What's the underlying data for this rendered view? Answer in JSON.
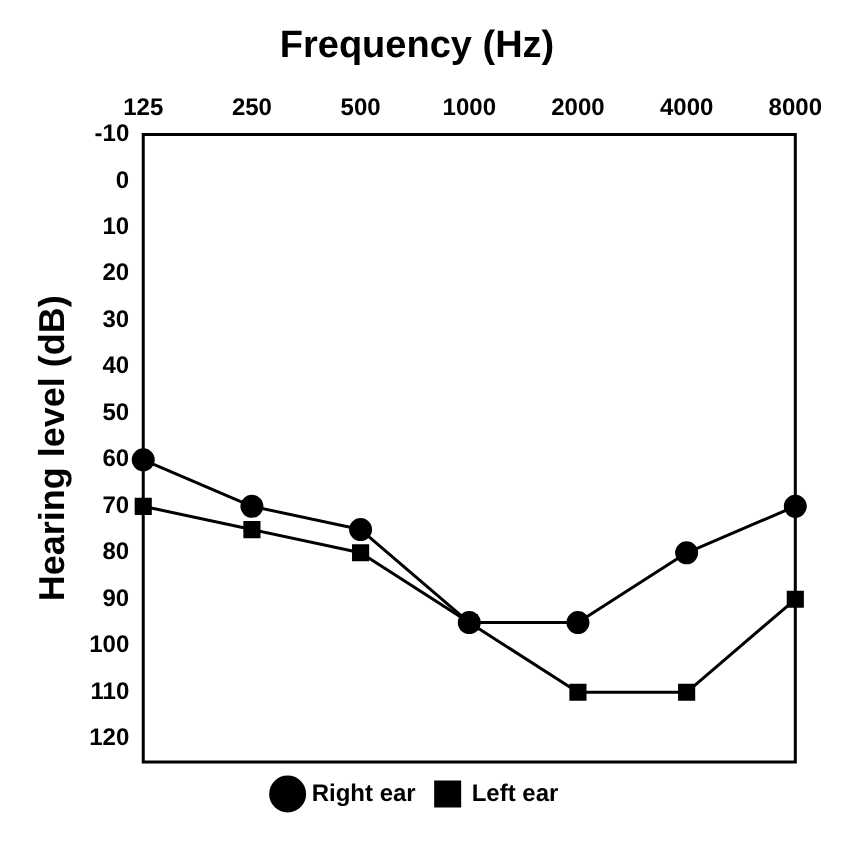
{
  "chart_data": {
    "type": "line",
    "title": "Frequency (Hz)",
    "ylabel": "Hearing level (dB)",
    "categories": [
      "125",
      "250",
      "500",
      "1000",
      "2000",
      "4000",
      "8000"
    ],
    "series": [
      {
        "name": "Right ear",
        "color": "#000000",
        "marker": "circle",
        "values": [
          60,
          70,
          75,
          95,
          95,
          80,
          70
        ]
      },
      {
        "name": "Left ear",
        "color": "#000000",
        "marker": "square",
        "values": [
          70,
          75,
          80,
          95,
          110,
          110,
          90
        ]
      }
    ],
    "ylim": [
      125,
      -10
    ],
    "yticks": [
      -10,
      0,
      10,
      20,
      30,
      40,
      50,
      60,
      70,
      80,
      90,
      100,
      110,
      120
    ],
    "grid": false,
    "legend": "bottom",
    "line_style": "solid"
  }
}
